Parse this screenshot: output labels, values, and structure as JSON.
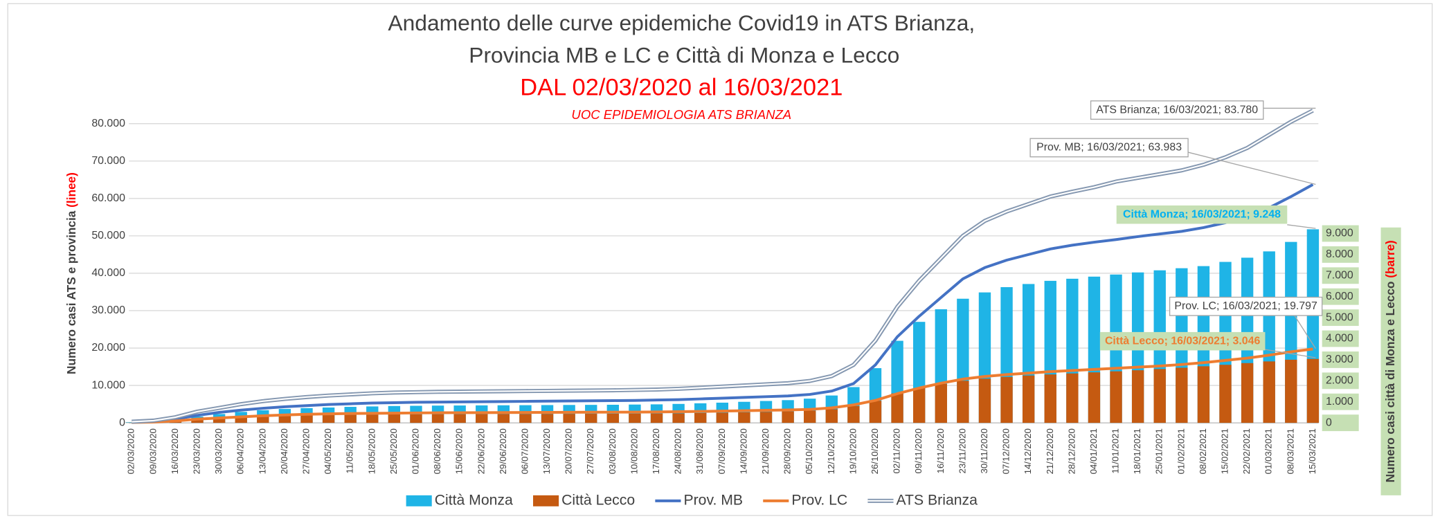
{
  "chart_data": {
    "type": "combo",
    "title": [
      "Andamento delle curve epidemiche Covid19 in ATS Brianza,",
      "Provincia MB e LC e Città di Monza e Lecco"
    ],
    "subtitle": "DAL 02/03/2020 al 16/03/2021",
    "note": "UOC EPIDEMIOLOGIA ATS BRIANZA",
    "y_label": [
      "Numero casi ATS e  provincia ",
      "(linee)"
    ],
    "y2_label": [
      "Numero casi città di Monza e Lecco ",
      "(barre)"
    ],
    "categories": [
      "02/03/2020",
      "09/03/2020",
      "16/03/2020",
      "23/03/2020",
      "30/03/2020",
      "06/04/2020",
      "13/04/2020",
      "20/04/2020",
      "27/04/2020",
      "04/05/2020",
      "11/05/2020",
      "18/05/2020",
      "25/05/2020",
      "01/06/2020",
      "08/06/2020",
      "15/06/2020",
      "22/06/2020",
      "29/06/2020",
      "06/07/2020",
      "13/07/2020",
      "20/07/2020",
      "27/07/2020",
      "03/08/2020",
      "10/08/2020",
      "17/08/2020",
      "24/08/2020",
      "31/08/2020",
      "07/09/2020",
      "14/09/2020",
      "21/09/2020",
      "28/09/2020",
      "05/10/2020",
      "12/10/2020",
      "19/10/2020",
      "26/10/2020",
      "02/11/2020",
      "09/11/2020",
      "16/11/2020",
      "23/11/2020",
      "30/11/2020",
      "07/12/2020",
      "14/12/2020",
      "21/12/2020",
      "28/12/2020",
      "04/01/2021",
      "11/01/2021",
      "18/01/2021",
      "25/01/2021",
      "01/02/2021",
      "08/02/2021",
      "15/02/2021",
      "22/02/2021",
      "01/03/2021",
      "08/03/2021",
      "15/03/2021"
    ],
    "series": [
      {
        "name": "Città Monza",
        "type": "bar",
        "axis": "y2",
        "color": "#1fb4e6",
        "values": [
          30,
          60,
          150,
          300,
          420,
          520,
          600,
          660,
          700,
          730,
          760,
          780,
          800,
          810,
          820,
          825,
          830,
          835,
          840,
          845,
          850,
          855,
          860,
          870,
          880,
          900,
          930,
          960,
          1000,
          1040,
          1080,
          1150,
          1300,
          1700,
          2600,
          3900,
          4800,
          5400,
          5900,
          6200,
          6450,
          6600,
          6750,
          6850,
          6950,
          7050,
          7150,
          7250,
          7350,
          7450,
          7650,
          7850,
          8150,
          8600,
          9200
        ]
      },
      {
        "name": "Città Lecco",
        "type": "bar",
        "axis": "y2",
        "color": "#c55a11",
        "values": [
          10,
          25,
          70,
          150,
          210,
          260,
          300,
          330,
          350,
          365,
          380,
          390,
          400,
          405,
          410,
          412,
          415,
          418,
          420,
          423,
          426,
          430,
          433,
          437,
          442,
          450,
          465,
          480,
          500,
          520,
          545,
          580,
          650,
          800,
          1050,
          1400,
          1650,
          1850,
          2000,
          2100,
          2180,
          2250,
          2300,
          2350,
          2400,
          2450,
          2500,
          2560,
          2620,
          2690,
          2760,
          2840,
          2920,
          3000,
          3040
        ]
      },
      {
        "name": "Prov. MB",
        "type": "line",
        "color": "#4472c4",
        "values": [
          200,
          400,
          1000,
          2000,
          2800,
          3400,
          3900,
          4300,
          4600,
          4900,
          5100,
          5300,
          5400,
          5500,
          5550,
          5600,
          5650,
          5700,
          5750,
          5800,
          5850,
          5900,
          5950,
          6000,
          6100,
          6200,
          6400,
          6600,
          6800,
          7000,
          7200,
          7600,
          8500,
          10500,
          15500,
          23000,
          28500,
          33500,
          38500,
          41500,
          43500,
          45000,
          46500,
          47500,
          48300,
          49000,
          49800,
          50500,
          51200,
          52200,
          53500,
          55000,
          57500,
          60500,
          63700
        ]
      },
      {
        "name": "Prov. LC",
        "type": "line",
        "color": "#ed7d31",
        "values": [
          100,
          200,
          500,
          1000,
          1300,
          1600,
          1900,
          2100,
          2300,
          2400,
          2500,
          2550,
          2600,
          2650,
          2700,
          2720,
          2740,
          2760,
          2780,
          2800,
          2820,
          2840,
          2860,
          2880,
          2920,
          2980,
          3050,
          3150,
          3250,
          3350,
          3450,
          3600,
          4000,
          4800,
          6000,
          7800,
          9300,
          10600,
          11700,
          12400,
          12900,
          13300,
          13700,
          14000,
          14300,
          14600,
          14900,
          15200,
          15600,
          16100,
          16700,
          17300,
          18100,
          19000,
          19750
        ]
      },
      {
        "name": "ATS Brianza",
        "type": "double-line",
        "color": "#8497b0",
        "values": [
          300,
          600,
          1500,
          3000,
          4000,
          5000,
          5800,
          6400,
          6900,
          7300,
          7600,
          7900,
          8100,
          8200,
          8300,
          8350,
          8400,
          8450,
          8500,
          8550,
          8600,
          8650,
          8700,
          8800,
          8900,
          9100,
          9400,
          9700,
          10000,
          10300,
          10600,
          11200,
          12500,
          15500,
          22000,
          31000,
          38000,
          44000,
          50000,
          54000,
          56500,
          58500,
          60500,
          61800,
          63000,
          64500,
          65500,
          66500,
          67500,
          69000,
          71000,
          73500,
          77000,
          80500,
          83500
        ]
      }
    ],
    "annotations": [
      "ATS Brianza; 16/03/2021; 83.780",
      "Prov. MB; 16/03/2021; 63.983",
      "Città Monza; 16/03/2021; 9.248",
      "Prov. LC; 16/03/2021; 19.797",
      "Città Lecco; 16/03/2021; 3.046"
    ],
    "ylim": [
      0,
      90000
    ],
    "yticks": [
      0,
      {
        "value": 10000,
        "label": "10.000"
      },
      {
        "value": 20000,
        "label": "20.000"
      },
      {
        "value": 30000,
        "label": "30.000"
      },
      {
        "value": 40000,
        "label": "40.000"
      },
      {
        "value": 50000,
        "label": "50.000"
      },
      {
        "value": 60000,
        "label": "60.000"
      },
      {
        "value": 70000,
        "label": "70.000"
      },
      {
        "value": 80000,
        "label": "80.000"
      }
    ],
    "y2lim": [
      0,
      16000
    ],
    "y2ticks": [
      0,
      {
        "value": 1000,
        "label": "1.000"
      },
      {
        "value": 2000,
        "label": "2.000"
      },
      {
        "value": 3000,
        "label": "3.000"
      },
      {
        "value": 4000,
        "label": "4.000"
      },
      {
        "value": 5000,
        "label": "5.000"
      },
      {
        "value": 6000,
        "label": "6.000"
      },
      {
        "value": 7000,
        "label": "7.000"
      },
      {
        "value": 8000,
        "label": "8.000"
      },
      {
        "value": 9000,
        "label": "9.000"
      }
    ],
    "grid": true,
    "legend": "bottom"
  }
}
